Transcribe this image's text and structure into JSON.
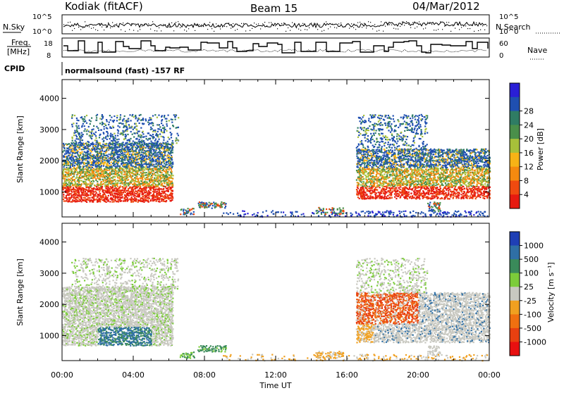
{
  "header": {
    "station": "Kodiak (fitACF)",
    "beam": "Beam 15",
    "date": "04/Mar/2012"
  },
  "status_panels": {
    "nsky_label": "N.Sky",
    "nsearch_label": "N.Search",
    "freq_label_line1": "Freq.",
    "freq_label_line2": "[MHz]",
    "nave_label": "Nave",
    "cpid_label": "CPID",
    "cpid_text": "normalsound (fast) -157 RF",
    "noise_ticks_left": [
      "10^5",
      "10^0"
    ],
    "noise_ticks_right": [
      "10^5",
      "10^0"
    ],
    "freq_ticks": [
      "18",
      "8"
    ],
    "nave_ticks": [
      "60",
      "0"
    ]
  },
  "chart_data": [
    {
      "type": "heatmap",
      "name": "power",
      "ylabel": "Slant Range [km]",
      "xlabel": "Time UT",
      "x_ticks": [
        "00:00",
        "04:00",
        "08:00",
        "12:00",
        "16:00",
        "20:00",
        "00:00"
      ],
      "x_range_hours": [
        0,
        24
      ],
      "y_ticks": [
        1000,
        2000,
        3000,
        4000
      ],
      "ylim": [
        200,
        4600
      ],
      "colorbar_label": "Power [dB]",
      "colorbar_ticks": [
        "4",
        "8",
        "12",
        "16",
        "20",
        "24",
        "28"
      ],
      "colorbar_colors": [
        "#2a1fd6",
        "#1f4fb0",
        "#2f7c64",
        "#4a8f4a",
        "#a7c03a",
        "#f7b316",
        "#f58a0f",
        "#ef4a10",
        "#e61a10"
      ]
    },
    {
      "type": "heatmap",
      "name": "velocity",
      "ylabel": "Slant Range [km]",
      "xlabel": "Time UT",
      "x_ticks": [
        "00:00",
        "04:00",
        "08:00",
        "12:00",
        "16:00",
        "20:00",
        "00:00"
      ],
      "x_range_hours": [
        0,
        24
      ],
      "y_ticks": [
        1000,
        2000,
        3000,
        4000
      ],
      "ylim": [
        200,
        4600
      ],
      "colorbar_label": "Velocity [m s⁻¹]",
      "colorbar_ticks": [
        "1000",
        "500",
        "100",
        "25",
        "-25",
        "-100",
        "-500",
        "-1000"
      ],
      "colorbar_colors": [
        "#1f3fb5",
        "#2f6fa5",
        "#3a8a5a",
        "#7ccc3a",
        "#c8c8c0",
        "#f0a020",
        "#f07010",
        "#e84010",
        "#e81010"
      ]
    }
  ],
  "xlabel": "Time UT"
}
